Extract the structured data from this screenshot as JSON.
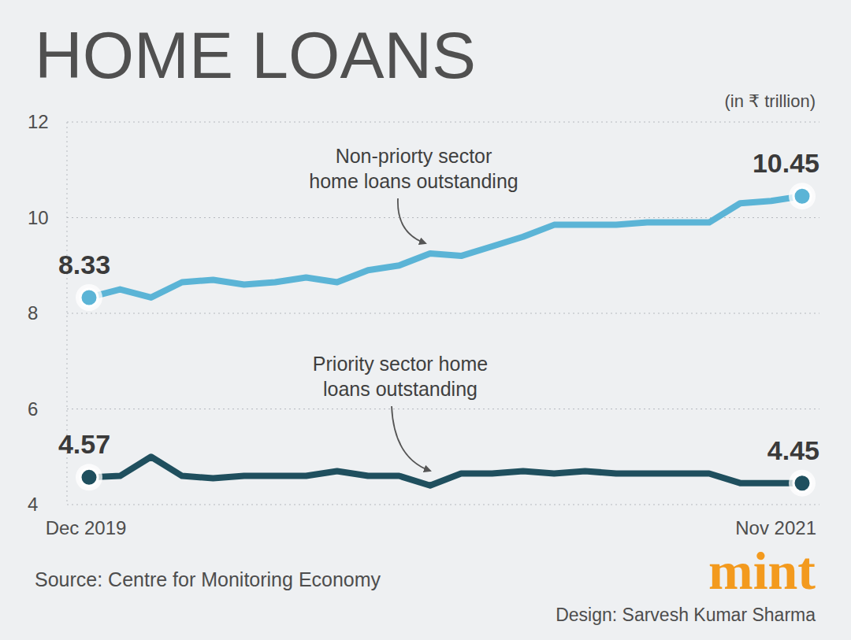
{
  "chart_data": {
    "type": "line",
    "title": "HOME LOANS",
    "ylabel": "(in ₹ trillion)",
    "source": "Source: Centre for Monitoring Economy",
    "brand": "mint",
    "credit": "Design: Sarvesh Kumar Sharma",
    "categories": [
      "Dec 2019",
      null,
      null,
      null,
      null,
      null,
      null,
      null,
      null,
      null,
      null,
      null,
      null,
      null,
      null,
      null,
      null,
      null,
      null,
      null,
      null,
      null,
      null,
      "Nov 2021"
    ],
    "series": [
      {
        "name": "Non-priorty sector\nhome loans outstanding",
        "color": "#5bb4d6",
        "values": [
          8.33,
          8.5,
          8.33,
          8.65,
          8.7,
          8.6,
          8.65,
          8.75,
          8.65,
          8.9,
          9.0,
          9.25,
          9.2,
          9.4,
          9.6,
          9.85,
          9.85,
          9.85,
          9.9,
          9.9,
          9.9,
          10.3,
          10.35,
          10.45
        ],
        "value_labels": [
          "8.33",
          null,
          null,
          null,
          null,
          null,
          null,
          null,
          null,
          null,
          null,
          null,
          null,
          null,
          null,
          null,
          null,
          null,
          null,
          null,
          null,
          null,
          null,
          "10.45"
        ]
      },
      {
        "name": "Priority sector home\nloans outstanding",
        "color": "#1f4f5e",
        "values": [
          4.57,
          4.6,
          5.0,
          4.6,
          4.55,
          4.6,
          4.6,
          4.6,
          4.7,
          4.6,
          4.6,
          4.4,
          4.65,
          4.65,
          4.7,
          4.65,
          4.7,
          4.65,
          4.65,
          4.65,
          4.65,
          4.45,
          4.45,
          4.45
        ],
        "value_labels": [
          "4.57",
          null,
          null,
          null,
          null,
          null,
          null,
          null,
          null,
          null,
          null,
          null,
          null,
          null,
          null,
          null,
          null,
          null,
          null,
          null,
          null,
          null,
          null,
          "4.45"
        ]
      }
    ],
    "ylim": [
      4,
      12
    ],
    "yticks": [
      4,
      6,
      8,
      10,
      12
    ],
    "grid": true
  }
}
